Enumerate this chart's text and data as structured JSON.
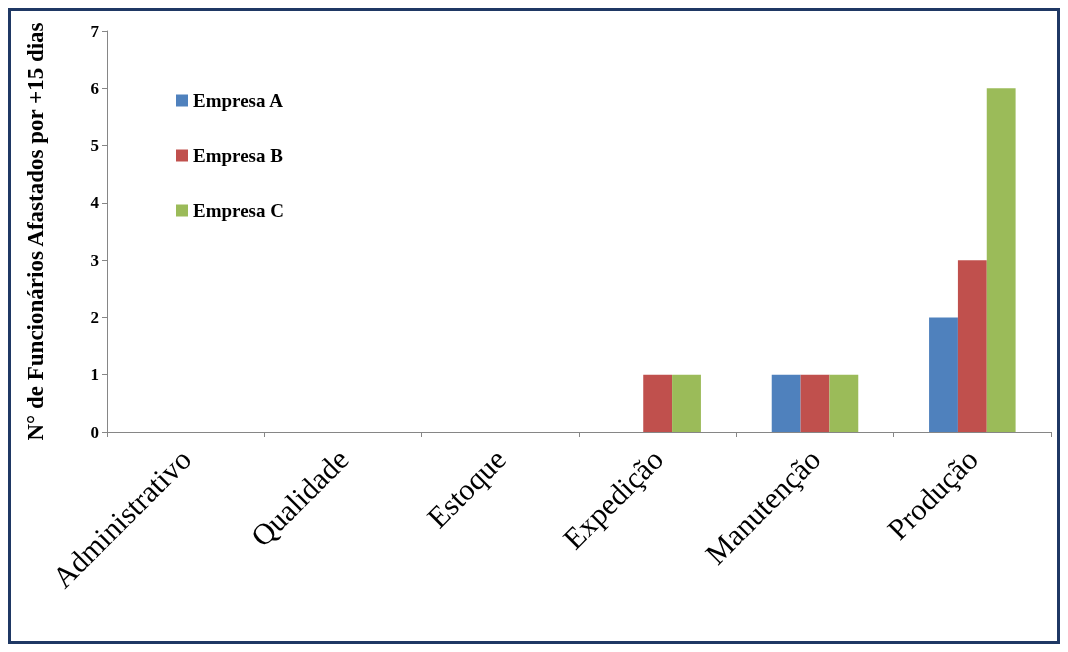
{
  "chart_data": {
    "type": "bar",
    "ylabel": "N° de Funcionários Afastados por +15 dias",
    "categories": [
      "Administrativo",
      "Qualidade",
      "Estoque",
      "Expedição",
      "Manutenção",
      "Produção"
    ],
    "series": [
      {
        "name": "Empresa A",
        "color": "#4f81bd",
        "values": [
          0,
          0,
          0,
          0,
          1,
          2
        ]
      },
      {
        "name": "Empresa B",
        "color": "#c0504d",
        "values": [
          0,
          0,
          0,
          1,
          1,
          3
        ]
      },
      {
        "name": "Empresa C",
        "color": "#9bbb59",
        "values": [
          0,
          0,
          0,
          1,
          1,
          6
        ]
      }
    ],
    "ylim": [
      0,
      7
    ],
    "yticks": [
      0,
      1,
      2,
      3,
      4,
      5,
      6,
      7
    ],
    "grid": false,
    "legend": "top left"
  }
}
